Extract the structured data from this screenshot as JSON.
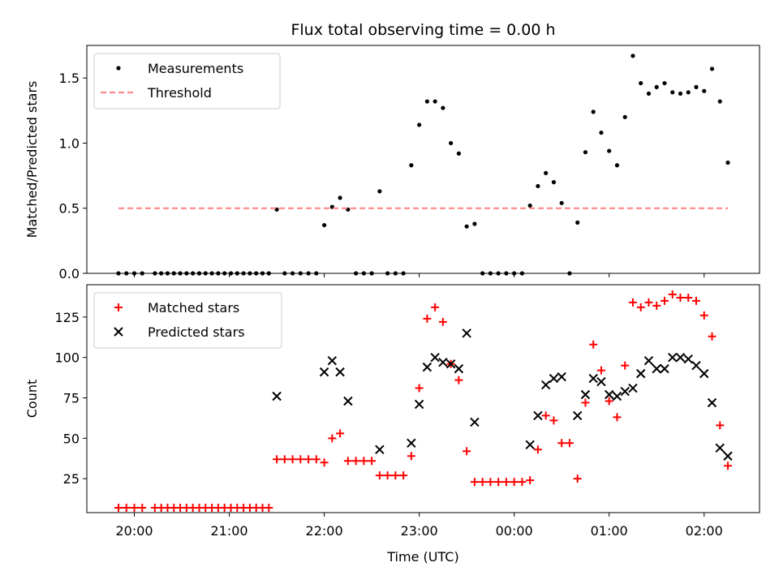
{
  "title": "Flux total observing time = 0.00 h",
  "chart_data": [
    {
      "type": "scatter",
      "title": "Flux total observing time = 0.00 h",
      "xlabel": "",
      "ylabel": "Matched/Predicted stars",
      "xlim": [
        "19:30",
        "02:35"
      ],
      "ylim": [
        0,
        1.75
      ],
      "yticks": [
        "0.0",
        "0.5",
        "1.0",
        "1.5"
      ],
      "grid": false,
      "legend": "top-left",
      "series": [
        {
          "name": "Measurements",
          "color": "#000000",
          "marker": "dot",
          "points": [
            [
              "19:50",
              0
            ],
            [
              "19:55",
              0
            ],
            [
              "20:00",
              0
            ],
            [
              "20:05",
              0
            ],
            [
              "20:13",
              0
            ],
            [
              "20:17",
              0
            ],
            [
              "20:21",
              0
            ],
            [
              "20:25",
              0
            ],
            [
              "20:29",
              0
            ],
            [
              "20:33",
              0
            ],
            [
              "20:37",
              0
            ],
            [
              "20:41",
              0
            ],
            [
              "20:45",
              0
            ],
            [
              "20:49",
              0
            ],
            [
              "20:53",
              0
            ],
            [
              "20:57",
              0
            ],
            [
              "21:01",
              0
            ],
            [
              "21:05",
              0
            ],
            [
              "21:09",
              0
            ],
            [
              "21:13",
              0
            ],
            [
              "21:17",
              0
            ],
            [
              "21:21",
              0
            ],
            [
              "21:25",
              0
            ],
            [
              "21:30",
              0.49
            ],
            [
              "21:35",
              0
            ],
            [
              "21:40",
              0
            ],
            [
              "21:45",
              0
            ],
            [
              "21:50",
              0
            ],
            [
              "21:55",
              0
            ],
            [
              "22:00",
              0.37
            ],
            [
              "22:05",
              0.51
            ],
            [
              "22:10",
              0.58
            ],
            [
              "22:15",
              0.49
            ],
            [
              "22:20",
              0
            ],
            [
              "22:25",
              0
            ],
            [
              "22:30",
              0
            ],
            [
              "22:35",
              0.63
            ],
            [
              "22:40",
              0
            ],
            [
              "22:45",
              0
            ],
            [
              "22:50",
              0
            ],
            [
              "22:55",
              0.83
            ],
            [
              "23:00",
              1.14
            ],
            [
              "23:05",
              1.32
            ],
            [
              "23:10",
              1.32
            ],
            [
              "23:15",
              1.27
            ],
            [
              "23:20",
              1.0
            ],
            [
              "23:25",
              0.92
            ],
            [
              "23:30",
              0.36
            ],
            [
              "23:35",
              0.38
            ],
            [
              "23:40",
              0
            ],
            [
              "23:45",
              0
            ],
            [
              "23:50",
              0
            ],
            [
              "23:55",
              0
            ],
            [
              "00:00",
              0
            ],
            [
              "00:05",
              0
            ],
            [
              "00:10",
              0.52
            ],
            [
              "00:15",
              0.67
            ],
            [
              "00:20",
              0.77
            ],
            [
              "00:25",
              0.7
            ],
            [
              "00:30",
              0.54
            ],
            [
              "00:35",
              0
            ],
            [
              "00:40",
              0.39
            ],
            [
              "00:45",
              0.93
            ],
            [
              "00:50",
              1.24
            ],
            [
              "00:55",
              1.08
            ],
            [
              "01:00",
              0.94
            ],
            [
              "01:05",
              0.83
            ],
            [
              "01:10",
              1.2
            ],
            [
              "01:15",
              1.67
            ],
            [
              "01:20",
              1.46
            ],
            [
              "01:25",
              1.38
            ],
            [
              "01:30",
              1.43
            ],
            [
              "01:35",
              1.46
            ],
            [
              "01:40",
              1.39
            ],
            [
              "01:45",
              1.38
            ],
            [
              "01:50",
              1.39
            ],
            [
              "01:55",
              1.43
            ],
            [
              "02:00",
              1.4
            ],
            [
              "02:05",
              1.57
            ],
            [
              "02:10",
              1.32
            ],
            [
              "02:15",
              0.85
            ]
          ]
        },
        {
          "name": "Threshold",
          "color": "#ff8080",
          "style": "dashed",
          "points": [
            [
              "19:50",
              0.5
            ],
            [
              "02:15",
              0.5
            ]
          ]
        }
      ]
    },
    {
      "type": "scatter",
      "title": "",
      "xlabel": "Time (UTC)",
      "ylabel": "Count",
      "xlim": [
        "19:30",
        "02:35"
      ],
      "ylim": [
        4,
        145
      ],
      "yticks": [
        "25",
        "50",
        "75",
        "100",
        "125"
      ],
      "xticks": [
        "20:00",
        "21:00",
        "22:00",
        "23:00",
        "00:00",
        "01:00",
        "02:00"
      ],
      "grid": false,
      "legend": "top-left",
      "series": [
        {
          "name": "Matched stars",
          "color": "#ff0000",
          "marker": "plus",
          "points": [
            [
              "19:50",
              7
            ],
            [
              "19:55",
              7
            ],
            [
              "20:00",
              7
            ],
            [
              "20:05",
              7
            ],
            [
              "20:13",
              7
            ],
            [
              "20:17",
              7
            ],
            [
              "20:21",
              7
            ],
            [
              "20:25",
              7
            ],
            [
              "20:29",
              7
            ],
            [
              "20:33",
              7
            ],
            [
              "20:37",
              7
            ],
            [
              "20:41",
              7
            ],
            [
              "20:45",
              7
            ],
            [
              "20:49",
              7
            ],
            [
              "20:53",
              7
            ],
            [
              "20:57",
              7
            ],
            [
              "21:01",
              7
            ],
            [
              "21:05",
              7
            ],
            [
              "21:09",
              7
            ],
            [
              "21:13",
              7
            ],
            [
              "21:17",
              7
            ],
            [
              "21:21",
              7
            ],
            [
              "21:25",
              7
            ],
            [
              "21:30",
              37
            ],
            [
              "21:35",
              37
            ],
            [
              "21:40",
              37
            ],
            [
              "21:45",
              37
            ],
            [
              "21:50",
              37
            ],
            [
              "21:55",
              37
            ],
            [
              "22:00",
              35
            ],
            [
              "22:05",
              50
            ],
            [
              "22:10",
              53
            ],
            [
              "22:15",
              36
            ],
            [
              "22:20",
              36
            ],
            [
              "22:25",
              36
            ],
            [
              "22:30",
              36
            ],
            [
              "22:35",
              27
            ],
            [
              "22:40",
              27
            ],
            [
              "22:45",
              27
            ],
            [
              "22:50",
              27
            ],
            [
              "22:55",
              39
            ],
            [
              "23:00",
              81
            ],
            [
              "23:05",
              124
            ],
            [
              "23:10",
              131
            ],
            [
              "23:15",
              122
            ],
            [
              "23:20",
              96
            ],
            [
              "23:25",
              86
            ],
            [
              "23:30",
              42
            ],
            [
              "23:35",
              23
            ],
            [
              "23:40",
              23
            ],
            [
              "23:45",
              23
            ],
            [
              "23:50",
              23
            ],
            [
              "23:55",
              23
            ],
            [
              "00:00",
              23
            ],
            [
              "00:05",
              23
            ],
            [
              "00:10",
              24
            ],
            [
              "00:15",
              43
            ],
            [
              "00:20",
              64
            ],
            [
              "00:25",
              61
            ],
            [
              "00:30",
              47
            ],
            [
              "00:35",
              47
            ],
            [
              "00:40",
              25
            ],
            [
              "00:45",
              72
            ],
            [
              "00:50",
              108
            ],
            [
              "00:55",
              92
            ],
            [
              "01:00",
              73
            ],
            [
              "01:05",
              63
            ],
            [
              "01:10",
              95
            ],
            [
              "01:15",
              134
            ],
            [
              "01:20",
              131
            ],
            [
              "01:25",
              134
            ],
            [
              "01:30",
              132
            ],
            [
              "01:35",
              135
            ],
            [
              "01:40",
              139
            ],
            [
              "01:45",
              137
            ],
            [
              "01:50",
              137
            ],
            [
              "01:55",
              135
            ],
            [
              "02:00",
              126
            ],
            [
              "02:05",
              113
            ],
            [
              "02:10",
              58
            ],
            [
              "02:15",
              33
            ]
          ]
        },
        {
          "name": "Predicted stars",
          "color": "#000000",
          "marker": "x",
          "points": [
            [
              "21:30",
              76
            ],
            [
              "22:00",
              91
            ],
            [
              "22:05",
              98
            ],
            [
              "22:10",
              91
            ],
            [
              "22:15",
              73
            ],
            [
              "22:35",
              43
            ],
            [
              "22:55",
              47
            ],
            [
              "23:00",
              71
            ],
            [
              "23:05",
              94
            ],
            [
              "23:10",
              100
            ],
            [
              "23:15",
              97
            ],
            [
              "23:20",
              96
            ],
            [
              "23:25",
              93
            ],
            [
              "23:30",
              115
            ],
            [
              "23:35",
              60
            ],
            [
              "00:10",
              46
            ],
            [
              "00:15",
              64
            ],
            [
              "00:20",
              83
            ],
            [
              "00:25",
              87
            ],
            [
              "00:30",
              88
            ],
            [
              "00:40",
              64
            ],
            [
              "00:45",
              77
            ],
            [
              "00:50",
              87
            ],
            [
              "00:55",
              85
            ],
            [
              "01:00",
              77
            ],
            [
              "01:05",
              76
            ],
            [
              "01:10",
              79
            ],
            [
              "01:15",
              81
            ],
            [
              "01:20",
              90
            ],
            [
              "01:25",
              98
            ],
            [
              "01:30",
              93
            ],
            [
              "01:35",
              93
            ],
            [
              "01:40",
              100
            ],
            [
              "01:45",
              100
            ],
            [
              "01:50",
              99
            ],
            [
              "01:55",
              95
            ],
            [
              "02:00",
              90
            ],
            [
              "02:05",
              72
            ],
            [
              "02:10",
              44
            ],
            [
              "02:15",
              39
            ]
          ]
        }
      ]
    }
  ]
}
